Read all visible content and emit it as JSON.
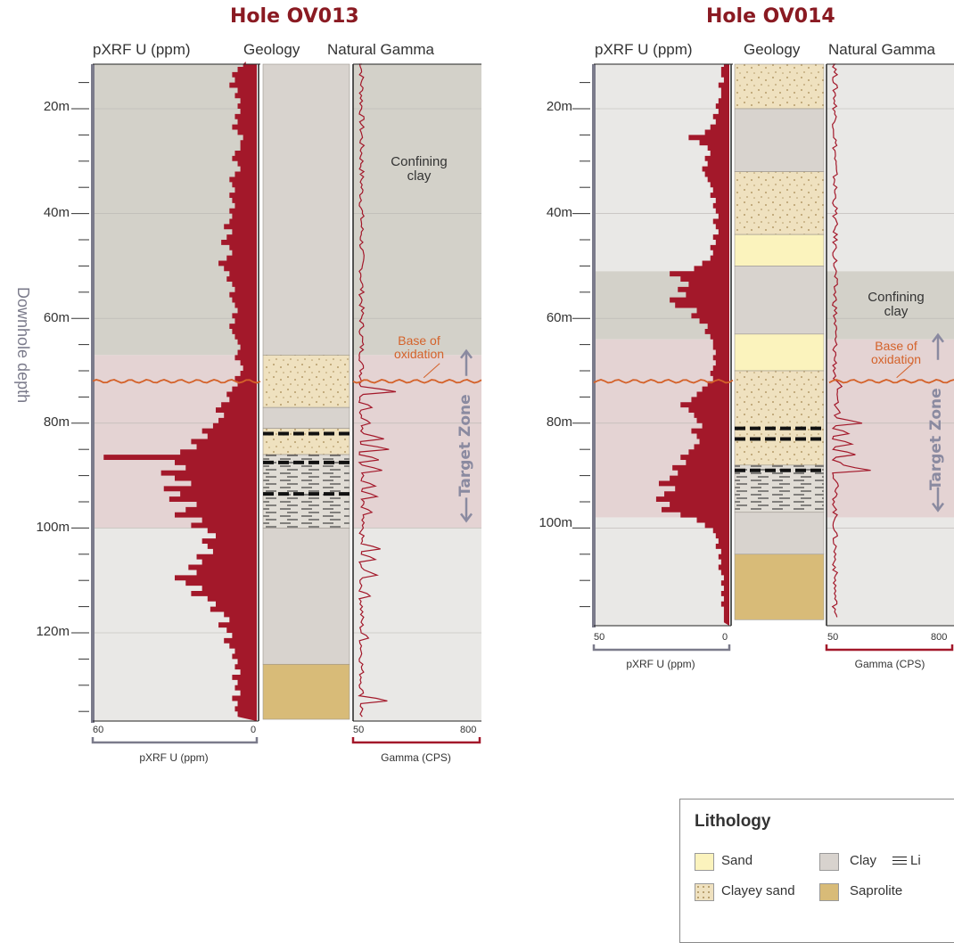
{
  "colors": {
    "clay": "#d8d3ce",
    "sand": "#fbf3bd",
    "clayey_sand": "#efe1bf",
    "saprolite": "#d8bb78",
    "confining_band": "#d3d1c9",
    "target_band": "#e4d3d3",
    "lower_band": "#e9e8e6",
    "pxrf_fill": "#a3182a",
    "gamma_line": "#a3182a",
    "oxidation_line": "#d4622a",
    "target_arrow": "#8a8aa0",
    "axis_bar": "#7b7b8b"
  },
  "ylabel": "Downhole depth",
  "holes": [
    {
      "title": "Hole OV013",
      "col_headers": {
        "pxrf": "pXRF U (ppm)",
        "geology": "Geology",
        "gamma": "Natural Gamma"
      },
      "depth_labels": [
        "20m",
        "40m",
        "60m",
        "80m",
        "100m",
        "120m"
      ],
      "pxrf_axis": {
        "min_label": "60",
        "max_label": "0",
        "title": "pXRF U (ppm)"
      },
      "gamma_axis": {
        "min_label": "50",
        "max_label": "800",
        "title": "Gamma (CPS)"
      },
      "annotations": {
        "confining": "Confining\nclay",
        "oxidation": "Base of\noxidation",
        "target": "Target Zone"
      },
      "zones": {
        "confining_bottom_m": 67,
        "oxidation_m": 72,
        "target_bottom_m": 100
      },
      "lithology": [
        {
          "type": "clay",
          "top_m": 10,
          "bottom_m": 67
        },
        {
          "type": "clayey_sand",
          "top_m": 67,
          "bottom_m": 77
        },
        {
          "type": "clay",
          "top_m": 77,
          "bottom_m": 81
        },
        {
          "type": "clayey_sand",
          "top_m": 81,
          "bottom_m": 86
        },
        {
          "type": "lignite",
          "top_m": 86,
          "bottom_m": 100
        },
        {
          "type": "clay",
          "top_m": 100,
          "bottom_m": 126
        },
        {
          "type": "saprolite",
          "top_m": 126,
          "bottom_m": 136.5
        }
      ],
      "dashes_m": [
        82,
        87.5,
        93.5
      ],
      "pxrf_values_ppm": [
        [
          10,
          4
        ],
        [
          11,
          5
        ],
        [
          12,
          7
        ],
        [
          13,
          9
        ],
        [
          14,
          8
        ],
        [
          15,
          10
        ],
        [
          16,
          7
        ],
        [
          17,
          8
        ],
        [
          18,
          6
        ],
        [
          19,
          7
        ],
        [
          20,
          6
        ],
        [
          21,
          8
        ],
        [
          22,
          7
        ],
        [
          23,
          9
        ],
        [
          24,
          7
        ],
        [
          25,
          5
        ],
        [
          26,
          6
        ],
        [
          27,
          6
        ],
        [
          28,
          8
        ],
        [
          29,
          9
        ],
        [
          30,
          7
        ],
        [
          31,
          6
        ],
        [
          32,
          8
        ],
        [
          33,
          10
        ],
        [
          34,
          9
        ],
        [
          35,
          8
        ],
        [
          36,
          10
        ],
        [
          37,
          9
        ],
        [
          38,
          8
        ],
        [
          39,
          10
        ],
        [
          40,
          9
        ],
        [
          41,
          10
        ],
        [
          42,
          12
        ],
        [
          43,
          9
        ],
        [
          44,
          11
        ],
        [
          45,
          13
        ],
        [
          46,
          10
        ],
        [
          47,
          9
        ],
        [
          48,
          11
        ],
        [
          49,
          14
        ],
        [
          50,
          12
        ],
        [
          51,
          10
        ],
        [
          52,
          11
        ],
        [
          53,
          9
        ],
        [
          54,
          8
        ],
        [
          55,
          10
        ],
        [
          56,
          9
        ],
        [
          57,
          8
        ],
        [
          58,
          7
        ],
        [
          59,
          9
        ],
        [
          60,
          8
        ],
        [
          61,
          10
        ],
        [
          62,
          9
        ],
        [
          63,
          8
        ],
        [
          64,
          7
        ],
        [
          65,
          6
        ],
        [
          66,
          7
        ],
        [
          67,
          8
        ],
        [
          68,
          6
        ],
        [
          69,
          5
        ],
        [
          70,
          6
        ],
        [
          71,
          8
        ],
        [
          72,
          7
        ],
        [
          73,
          9
        ],
        [
          74,
          11
        ],
        [
          75,
          10
        ],
        [
          76,
          13
        ],
        [
          77,
          15
        ],
        [
          78,
          12
        ],
        [
          79,
          14
        ],
        [
          80,
          16
        ],
        [
          81,
          20
        ],
        [
          82,
          18
        ],
        [
          83,
          24
        ],
        [
          84,
          22
        ],
        [
          85,
          28
        ],
        [
          86,
          56
        ],
        [
          87,
          30
        ],
        [
          88,
          26
        ],
        [
          89,
          35
        ],
        [
          90,
          30
        ],
        [
          91,
          24
        ],
        [
          92,
          34
        ],
        [
          93,
          28
        ],
        [
          94,
          32
        ],
        [
          95,
          22
        ],
        [
          96,
          26
        ],
        [
          97,
          30
        ],
        [
          98,
          20
        ],
        [
          99,
          24
        ],
        [
          100,
          18
        ],
        [
          101,
          15
        ],
        [
          102,
          20
        ],
        [
          103,
          18
        ],
        [
          104,
          16
        ],
        [
          105,
          22
        ],
        [
          106,
          20
        ],
        [
          107,
          25
        ],
        [
          108,
          22
        ],
        [
          109,
          30
        ],
        [
          110,
          26
        ],
        [
          111,
          20
        ],
        [
          112,
          24
        ],
        [
          113,
          18
        ],
        [
          114,
          15
        ],
        [
          115,
          17
        ],
        [
          116,
          12
        ],
        [
          117,
          10
        ],
        [
          118,
          14
        ],
        [
          119,
          11
        ],
        [
          120,
          9
        ],
        [
          121,
          12
        ],
        [
          122,
          10
        ],
        [
          123,
          8
        ],
        [
          124,
          9
        ],
        [
          125,
          7
        ],
        [
          126,
          8
        ],
        [
          127,
          6
        ],
        [
          128,
          9
        ],
        [
          129,
          7
        ],
        [
          130,
          8
        ],
        [
          131,
          6
        ],
        [
          132,
          9
        ],
        [
          133,
          7
        ],
        [
          134,
          8
        ],
        [
          135,
          7
        ]
      ],
      "gamma_spikes": [
        [
          74,
          300
        ],
        [
          77,
          160
        ],
        [
          80,
          150
        ],
        [
          83,
          230
        ],
        [
          85,
          260
        ],
        [
          87,
          200
        ],
        [
          89,
          220
        ],
        [
          92,
          180
        ],
        [
          94,
          190
        ],
        [
          97,
          160
        ],
        [
          104,
          210
        ],
        [
          106,
          180
        ],
        [
          109,
          190
        ],
        [
          113,
          150
        ],
        [
          121,
          140
        ],
        [
          133,
          250
        ]
      ]
    },
    {
      "title": "Hole OV014",
      "col_headers": {
        "pxrf": "pXRF U (ppm)",
        "geology": "Geology",
        "gamma": "Natural Gamma"
      },
      "depth_labels": [
        "20m",
        "40m",
        "60m",
        "80m",
        "100m"
      ],
      "pxrf_axis": {
        "min_label": "50",
        "max_label": "0",
        "title": "pXRF U (ppm)"
      },
      "gamma_axis": {
        "min_label": "50",
        "max_label": "800",
        "title": "Gamma (CPS)"
      },
      "annotations": {
        "confining": "Confining\nclay",
        "oxidation": "Base of\noxidation",
        "target": "Target Zone"
      },
      "zones": {
        "confining_top_m": 51,
        "confining_bottom_m": 64,
        "oxidation_m": 72,
        "target_bottom_m": 98
      },
      "lithology": [
        {
          "type": "clayey_sand",
          "top_m": 10,
          "bottom_m": 20
        },
        {
          "type": "clay",
          "top_m": 20,
          "bottom_m": 32
        },
        {
          "type": "clayey_sand",
          "top_m": 32,
          "bottom_m": 44
        },
        {
          "type": "sand",
          "top_m": 44,
          "bottom_m": 50
        },
        {
          "type": "clay",
          "top_m": 50,
          "bottom_m": 63
        },
        {
          "type": "sand",
          "top_m": 63,
          "bottom_m": 70
        },
        {
          "type": "clayey_sand",
          "top_m": 70,
          "bottom_m": 88
        },
        {
          "type": "lignite",
          "top_m": 88,
          "bottom_m": 97
        },
        {
          "type": "clay",
          "top_m": 97,
          "bottom_m": 105
        },
        {
          "type": "saprolite",
          "top_m": 105,
          "bottom_m": 117.5
        }
      ],
      "dashes_m": [
        81,
        83,
        89
      ],
      "pxrf_values_ppm": [
        [
          10,
          2
        ],
        [
          11,
          2
        ],
        [
          12,
          3
        ],
        [
          13,
          3
        ],
        [
          14,
          2
        ],
        [
          15,
          4
        ],
        [
          16,
          3
        ],
        [
          17,
          3
        ],
        [
          18,
          4
        ],
        [
          19,
          5
        ],
        [
          20,
          4
        ],
        [
          21,
          6
        ],
        [
          22,
          5
        ],
        [
          23,
          7
        ],
        [
          24,
          9
        ],
        [
          25,
          15
        ],
        [
          26,
          11
        ],
        [
          27,
          8
        ],
        [
          28,
          7
        ],
        [
          29,
          9
        ],
        [
          30,
          8
        ],
        [
          31,
          10
        ],
        [
          32,
          9
        ],
        [
          33,
          8
        ],
        [
          34,
          7
        ],
        [
          35,
          6
        ],
        [
          36,
          7
        ],
        [
          37,
          5
        ],
        [
          38,
          6
        ],
        [
          39,
          5
        ],
        [
          40,
          4
        ],
        [
          41,
          6
        ],
        [
          42,
          5
        ],
        [
          43,
          4
        ],
        [
          44,
          6
        ],
        [
          45,
          5
        ],
        [
          46,
          7
        ],
        [
          47,
          6
        ],
        [
          48,
          7
        ],
        [
          49,
          10
        ],
        [
          50,
          13
        ],
        [
          51,
          22
        ],
        [
          52,
          18
        ],
        [
          53,
          15
        ],
        [
          54,
          19
        ],
        [
          55,
          16
        ],
        [
          56,
          22
        ],
        [
          57,
          20
        ],
        [
          58,
          12
        ],
        [
          59,
          14
        ],
        [
          60,
          11
        ],
        [
          61,
          8
        ],
        [
          62,
          9
        ],
        [
          63,
          7
        ],
        [
          64,
          6
        ],
        [
          65,
          6
        ],
        [
          66,
          5
        ],
        [
          67,
          6
        ],
        [
          68,
          5
        ],
        [
          69,
          6
        ],
        [
          70,
          7
        ],
        [
          71,
          6
        ],
        [
          72,
          8
        ],
        [
          73,
          10
        ],
        [
          74,
          12
        ],
        [
          75,
          14
        ],
        [
          76,
          18
        ],
        [
          77,
          15
        ],
        [
          78,
          13
        ],
        [
          79,
          12
        ],
        [
          80,
          10
        ],
        [
          81,
          14
        ],
        [
          82,
          12
        ],
        [
          83,
          11
        ],
        [
          84,
          13
        ],
        [
          85,
          15
        ],
        [
          86,
          18
        ],
        [
          87,
          16
        ],
        [
          88,
          21
        ],
        [
          89,
          19
        ],
        [
          90,
          22
        ],
        [
          91,
          26
        ],
        [
          92,
          20
        ],
        [
          93,
          24
        ],
        [
          94,
          27
        ],
        [
          95,
          22
        ],
        [
          96,
          25
        ],
        [
          97,
          18
        ],
        [
          98,
          12
        ],
        [
          99,
          9
        ],
        [
          100,
          6
        ],
        [
          101,
          5
        ],
        [
          102,
          4
        ],
        [
          103,
          5
        ],
        [
          104,
          3
        ],
        [
          105,
          4
        ],
        [
          106,
          3
        ],
        [
          107,
          4
        ],
        [
          108,
          3
        ],
        [
          109,
          2
        ],
        [
          110,
          3
        ],
        [
          111,
          2
        ],
        [
          112,
          3
        ],
        [
          113,
          2
        ],
        [
          114,
          3
        ],
        [
          115,
          2
        ],
        [
          116,
          2
        ],
        [
          117,
          2
        ]
      ],
      "gamma_spikes": [
        [
          73,
          140
        ],
        [
          76,
          120
        ],
        [
          78,
          130
        ],
        [
          80,
          260
        ],
        [
          82,
          180
        ],
        [
          84,
          200
        ],
        [
          86,
          220
        ],
        [
          88,
          150
        ],
        [
          89,
          310
        ],
        [
          92,
          120
        ]
      ]
    }
  ],
  "legend": {
    "title": "Lithology",
    "items": [
      {
        "label": "Sand",
        "type": "sand"
      },
      {
        "label": "Clay",
        "type": "clay"
      },
      {
        "label": "Li",
        "type": "lignite"
      },
      {
        "label": "Clayey sand",
        "type": "clayey_sand"
      },
      {
        "label": "Saprolite",
        "type": "saprolite"
      }
    ]
  }
}
